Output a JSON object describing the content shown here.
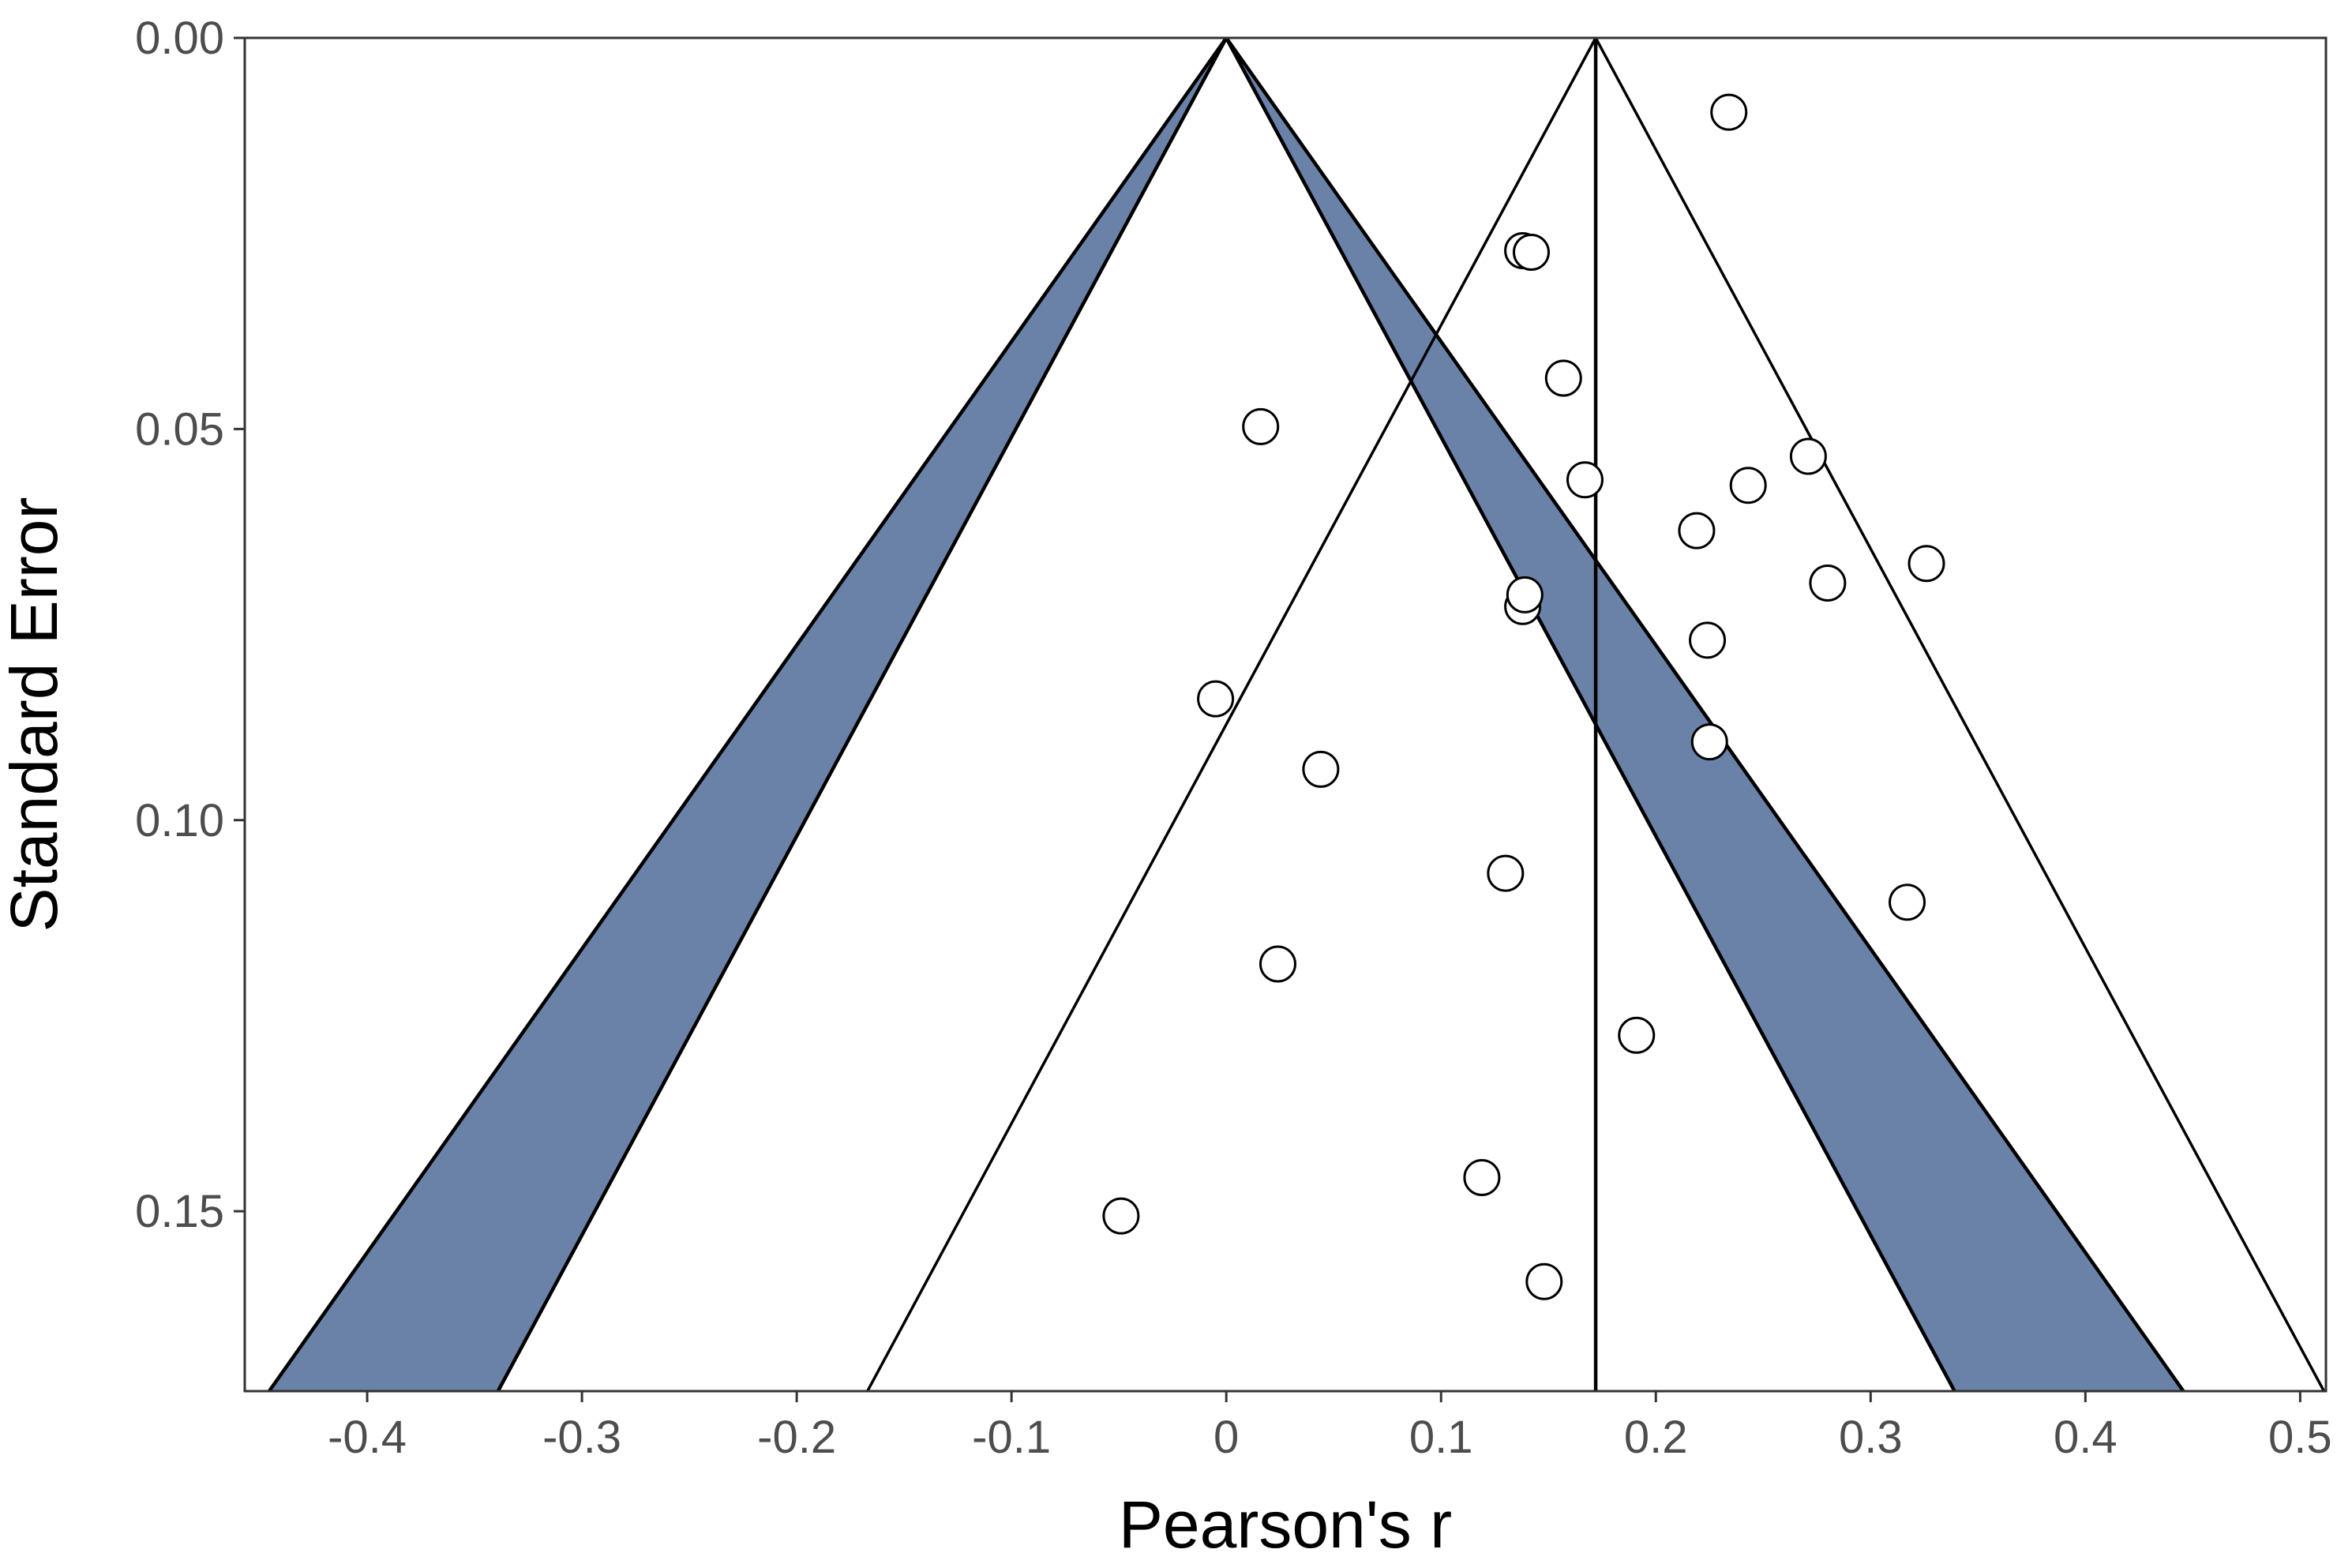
{
  "chart_data": {
    "type": "scatter",
    "xlabel": "Pearson's r",
    "ylabel": "Standard Error",
    "xlim": [
      -0.457,
      0.512
    ],
    "ylim": [
      0.0,
      0.173
    ],
    "y_reversed": true,
    "x_ticks": [
      {
        "value": -0.4,
        "label": "-0.4"
      },
      {
        "value": -0.3,
        "label": "-0.3"
      },
      {
        "value": -0.2,
        "label": "-0.2"
      },
      {
        "value": -0.1,
        "label": "-0.1"
      },
      {
        "value": 0,
        "label": "0"
      },
      {
        "value": 0.1,
        "label": "0.1"
      },
      {
        "value": 0.2,
        "label": "0.2"
      },
      {
        "value": 0.3,
        "label": "0.3"
      },
      {
        "value": 0.4,
        "label": "0.4"
      },
      {
        "value": 0.5,
        "label": "0.5"
      }
    ],
    "y_ticks": [
      {
        "value": 0.0,
        "label": "0.00"
      },
      {
        "value": 0.05,
        "label": "0.05"
      },
      {
        "value": 0.1,
        "label": "0.10"
      },
      {
        "value": 0.15,
        "label": "0.15"
      }
    ],
    "grid": false,
    "colors": {
      "significance_band": "#6a82a8",
      "point_fill": "#ffffff",
      "point_stroke": "#000000",
      "line": "#000000",
      "panel_border": "#333333",
      "tick_text": "#4d4d4d"
    },
    "null_funnel": {
      "center": 0.0,
      "inner_multiplier": 1.96,
      "outer_multiplier": 2.576,
      "fill": "#6a82a8"
    },
    "estimate_funnel": {
      "center": 0.172,
      "multiplier": 1.96
    },
    "estimate_line": 0.172,
    "points": [
      {
        "x": 0.234,
        "y": 0.0095
      },
      {
        "x": 0.138,
        "y": 0.0272
      },
      {
        "x": 0.142,
        "y": 0.0274
      },
      {
        "x": 0.157,
        "y": 0.0435
      },
      {
        "x": 0.016,
        "y": 0.0497
      },
      {
        "x": 0.271,
        "y": 0.0535
      },
      {
        "x": 0.167,
        "y": 0.0565
      },
      {
        "x": 0.243,
        "y": 0.0572
      },
      {
        "x": 0.219,
        "y": 0.063
      },
      {
        "x": 0.326,
        "y": 0.0672
      },
      {
        "x": 0.28,
        "y": 0.0697
      },
      {
        "x": 0.138,
        "y": 0.0727
      },
      {
        "x": 0.139,
        "y": 0.0712
      },
      {
        "x": 0.224,
        "y": 0.077
      },
      {
        "x": -0.005,
        "y": 0.0845
      },
      {
        "x": 0.225,
        "y": 0.09
      },
      {
        "x": 0.044,
        "y": 0.0935
      },
      {
        "x": 0.13,
        "y": 0.1068
      },
      {
        "x": 0.317,
        "y": 0.1105
      },
      {
        "x": 0.024,
        "y": 0.1184
      },
      {
        "x": 0.191,
        "y": 0.1275
      },
      {
        "x": 0.119,
        "y": 0.1457
      },
      {
        "x": -0.049,
        "y": 0.1506
      },
      {
        "x": 0.148,
        "y": 0.159
      }
    ]
  }
}
